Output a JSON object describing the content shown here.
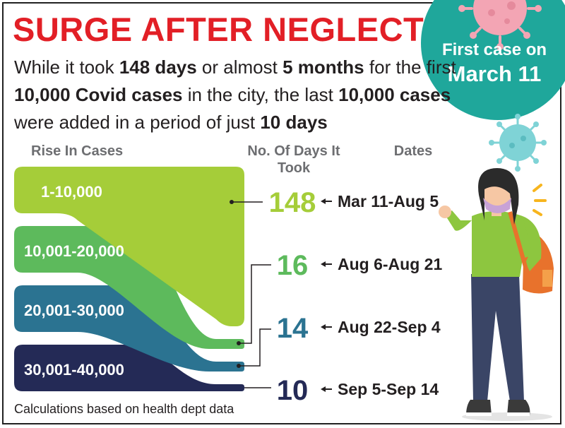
{
  "title": "SURGE AFTER NEGLECT",
  "intro": {
    "p1": "While it took ",
    "b1": "148 days",
    "p2": " or almost ",
    "b2": "5 months",
    "p3": " for the first ",
    "b3": "10,000 Covid cases",
    "p4": " in the city, the last ",
    "b4": "10,000 cases",
    "p5": " were added in a period of just ",
    "b5": "10 days"
  },
  "badge": {
    "line1": "First case on",
    "line2": "March 11"
  },
  "headers": {
    "rise": "Rise In Cases",
    "days": "No. Of Days It Took",
    "dates": "Dates"
  },
  "footnote": "Calculations based on health dept data",
  "colors": {
    "title": "#e21f26",
    "badge": "#1fa79b",
    "band1": "#a5cd39",
    "band2": "#5dba5c",
    "band3": "#2b7391",
    "band4": "#242a56"
  },
  "chart_data": {
    "type": "table",
    "columns": [
      "Rise In Cases",
      "No. Of Days It Took",
      "Dates"
    ],
    "rows": [
      {
        "range": "1-10,000",
        "days": 148,
        "dates": "Mar 11-Aug 5"
      },
      {
        "range": "10,001-20,000",
        "days": 16,
        "dates": "Aug 6-Aug 21"
      },
      {
        "range": "20,001-30,000",
        "days": 14,
        "dates": "Aug 22-Sep 4"
      },
      {
        "range": "30,001-40,000",
        "days": 10,
        "dates": "Sep 5-Sep 14"
      }
    ]
  }
}
